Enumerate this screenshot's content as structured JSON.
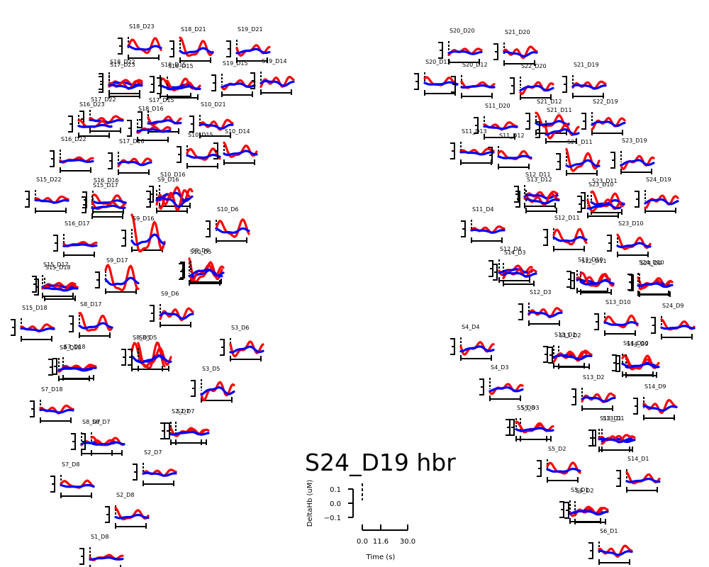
{
  "chart_data": {
    "type": "line",
    "title": "S24_D19 hbr",
    "legend_axes": {
      "ylabel": "DeltaHb (uM)",
      "xlabel": "Time (s)",
      "yticks": [
        "0.1",
        "0.0",
        "−0.1"
      ],
      "xticks": [
        "0.0",
        "11.6",
        "30.0"
      ],
      "xlim": [
        0.0,
        30.0
      ],
      "ylim": [
        -0.1,
        0.1
      ]
    },
    "series_colors": {
      "hbo": "#ff0000",
      "hbr": "#0000ff"
    },
    "channels": [
      {
        "name": "S18_D23"
      },
      {
        "name": "S18_D21"
      },
      {
        "name": "S19_D21"
      },
      {
        "name": "S18_D22"
      },
      {
        "name": "S17_D23"
      },
      {
        "name": "S18_D15"
      },
      {
        "name": "S18_D15"
      },
      {
        "name": "S19_D15"
      },
      {
        "name": "S19_D14"
      },
      {
        "name": "S17_D22"
      },
      {
        "name": "S16_D23"
      },
      {
        "name": "S17_D15"
      },
      {
        "name": "S18_D16"
      },
      {
        "name": "S10_D21"
      },
      {
        "name": "S10_D15"
      },
      {
        "name": "S10_D14"
      },
      {
        "name": "S16_D22"
      },
      {
        "name": "S17_D16"
      },
      {
        "name": "S15_D22"
      },
      {
        "name": "S16_D16"
      },
      {
        "name": "S15_D17"
      },
      {
        "name": "S10_D16"
      },
      {
        "name": "S9_D16"
      },
      {
        "name": "S10_D6"
      },
      {
        "name": "S9_D16"
      },
      {
        "name": "S16_D17"
      },
      {
        "name": "S15_D17"
      },
      {
        "name": "S15_D18"
      },
      {
        "name": "S9_D17"
      },
      {
        "name": "S10_D5"
      },
      {
        "name": "S9_D6"
      },
      {
        "name": "S9_D6"
      },
      {
        "name": "S15_D18"
      },
      {
        "name": "S8_D17"
      },
      {
        "name": "S3_D6"
      },
      {
        "name": "S8_D18"
      },
      {
        "name": "S7_D18"
      },
      {
        "name": "S8_D5"
      },
      {
        "name": "S8_D5"
      },
      {
        "name": "S3_D5"
      },
      {
        "name": "S8_D7"
      },
      {
        "name": "S7_D18"
      },
      {
        "name": "S8_D7"
      },
      {
        "name": "S2_D7"
      },
      {
        "name": "S2_D7"
      },
      {
        "name": "S2_D7"
      },
      {
        "name": "S7_D8"
      },
      {
        "name": "S2_D8"
      },
      {
        "name": "S1_D8"
      },
      {
        "name": "S20_D20"
      },
      {
        "name": "S21_D20"
      },
      {
        "name": "S20_D13"
      },
      {
        "name": "S20_D12"
      },
      {
        "name": "S22_D20"
      },
      {
        "name": "S21_D19"
      },
      {
        "name": "S11_D20"
      },
      {
        "name": "S21_D12"
      },
      {
        "name": "S21_D11"
      },
      {
        "name": "S22_D19"
      },
      {
        "name": "S11_D13"
      },
      {
        "name": "S11_D12"
      },
      {
        "name": "S21_D11"
      },
      {
        "name": "S23_D19"
      },
      {
        "name": "S12_D11"
      },
      {
        "name": "S13_D12"
      },
      {
        "name": "S23_D11"
      },
      {
        "name": "S23_D10"
      },
      {
        "name": "S24_D19"
      },
      {
        "name": "S11_D4"
      },
      {
        "name": "S12_D11"
      },
      {
        "name": "S23_D10"
      },
      {
        "name": "S12_D4"
      },
      {
        "name": "S14_D3"
      },
      {
        "name": "S13_D10"
      },
      {
        "name": "S12_D11"
      },
      {
        "name": "S24_D10"
      },
      {
        "name": "S24_D9"
      },
      {
        "name": "S12_D3"
      },
      {
        "name": "S13_D10"
      },
      {
        "name": "S24_D9"
      },
      {
        "name": "S4_D4"
      },
      {
        "name": "S13_D2"
      },
      {
        "name": "S13_D2"
      },
      {
        "name": "S14_D10"
      },
      {
        "name": "S14_D9"
      },
      {
        "name": "S4_D3"
      },
      {
        "name": "S13_D2"
      },
      {
        "name": "S14_D9"
      },
      {
        "name": "S5_D3"
      },
      {
        "name": "S5_D3"
      },
      {
        "name": "S13_D1"
      },
      {
        "name": "S13_D1"
      },
      {
        "name": "S5_D2"
      },
      {
        "name": "S14_D1"
      },
      {
        "name": "S5_D1"
      },
      {
        "name": "S6_D2"
      },
      {
        "name": "S6_D1"
      }
    ]
  }
}
